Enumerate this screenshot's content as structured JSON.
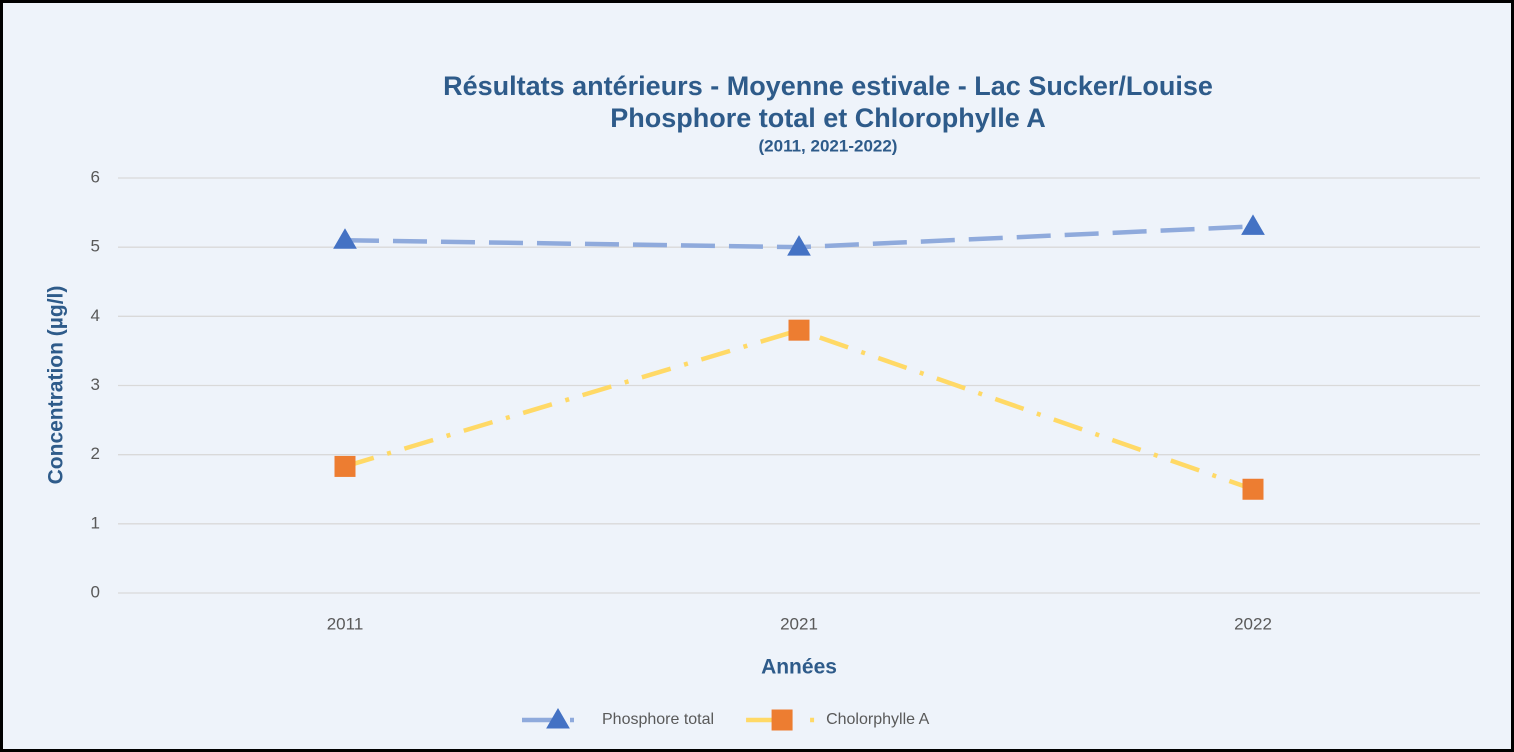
{
  "chart_data": {
    "type": "line",
    "title": [
      "Résultats antérieurs - Moyenne estivale - Lac Sucker/Louise",
      "Phosphore total et Chlorophylle A"
    ],
    "subtitle": "(2011, 2021-2022)",
    "x_label": "Années",
    "y_label": "Concentration (µg/l)",
    "categories": [
      "2011",
      "2021",
      "2022"
    ],
    "series": [
      {
        "name": "Phosphore total",
        "color": "#8faadc",
        "marker_color": "#4472c4",
        "marker": "triangle",
        "dash": "dashed",
        "values": [
          5.1,
          5.0,
          5.3
        ]
      },
      {
        "name": "Cholorphylle A",
        "color": "#ffd966",
        "marker_color": "#ed7d31",
        "marker": "square",
        "dash": "dashdot",
        "values": [
          1.83,
          3.8,
          1.5
        ]
      }
    ],
    "ylim": [
      0,
      6
    ],
    "yticks": [
      0,
      1,
      2,
      3,
      4,
      5,
      6
    ],
    "grid": true,
    "legend": "bottom"
  }
}
